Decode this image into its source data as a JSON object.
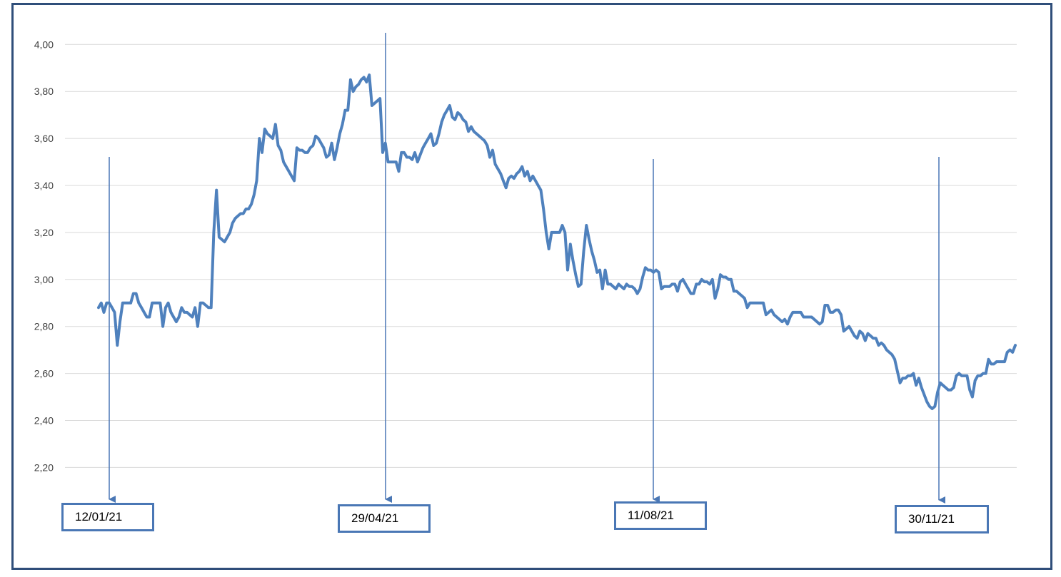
{
  "chart_data": {
    "type": "line",
    "title": "",
    "xlabel": "",
    "ylabel": "",
    "ylim": [
      2.1,
      4.05
    ],
    "y_ticks": [
      "4,00",
      "3,80",
      "3,60",
      "3,40",
      "3,20",
      "3,00",
      "2,80",
      "2,60",
      "2,40",
      "2,20"
    ],
    "y_tick_values": [
      4.0,
      3.8,
      3.6,
      3.4,
      3.2,
      3.0,
      2.8,
      2.6,
      2.4,
      2.2
    ],
    "grid": "horizontal",
    "line_color": "#4F81BD",
    "series": [
      {
        "values": [
          2.88,
          2.9,
          2.86,
          2.9,
          2.9,
          2.88,
          2.86,
          2.72,
          2.82,
          2.9,
          2.9,
          2.9,
          2.9,
          2.94,
          2.94,
          2.9,
          2.88,
          2.86,
          2.84,
          2.84,
          2.9,
          2.9,
          2.9,
          2.9,
          2.8,
          2.88,
          2.9,
          2.86,
          2.84,
          2.82,
          2.84,
          2.88,
          2.86,
          2.86,
          2.85,
          2.84,
          2.88,
          2.8,
          2.9,
          2.9,
          2.89,
          2.88,
          2.88,
          3.2,
          3.38,
          3.18,
          3.17,
          3.16,
          3.18,
          3.2,
          3.24,
          3.26,
          3.27,
          3.28,
          3.28,
          3.3,
          3.3,
          3.32,
          3.36,
          3.42,
          3.6,
          3.54,
          3.64,
          3.62,
          3.61,
          3.6,
          3.66,
          3.57,
          3.55,
          3.5,
          3.48,
          3.46,
          3.44,
          3.42,
          3.56,
          3.55,
          3.55,
          3.54,
          3.54,
          3.56,
          3.57,
          3.61,
          3.6,
          3.58,
          3.56,
          3.52,
          3.53,
          3.58,
          3.51,
          3.56,
          3.62,
          3.66,
          3.72,
          3.72,
          3.85,
          3.8,
          3.82,
          3.83,
          3.85,
          3.86,
          3.84,
          3.87,
          3.74,
          3.75,
          3.76,
          3.77,
          3.54,
          3.58,
          3.5,
          3.5,
          3.5,
          3.5,
          3.46,
          3.54,
          3.54,
          3.52,
          3.52,
          3.51,
          3.54,
          3.5,
          3.53,
          3.56,
          3.58,
          3.6,
          3.62,
          3.57,
          3.58,
          3.62,
          3.67,
          3.7,
          3.72,
          3.74,
          3.69,
          3.68,
          3.71,
          3.7,
          3.68,
          3.67,
          3.63,
          3.65,
          3.63,
          3.62,
          3.61,
          3.6,
          3.59,
          3.57,
          3.52,
          3.55,
          3.49,
          3.47,
          3.45,
          3.42,
          3.39,
          3.43,
          3.44,
          3.43,
          3.45,
          3.46,
          3.48,
          3.44,
          3.46,
          3.42,
          3.44,
          3.42,
          3.4,
          3.38,
          3.3,
          3.2,
          3.13,
          3.2,
          3.2,
          3.2,
          3.2,
          3.23,
          3.2,
          3.04,
          3.15,
          3.08,
          3.02,
          2.97,
          2.98,
          3.12,
          3.23,
          3.17,
          3.12,
          3.08,
          3.03,
          3.04,
          2.96,
          3.04,
          2.98,
          2.98,
          2.97,
          2.96,
          2.98,
          2.97,
          2.96,
          2.98,
          2.97,
          2.97,
          2.96,
          2.94,
          2.96,
          3.01,
          3.05,
          3.04,
          3.04,
          3.03,
          3.04,
          3.03,
          2.96,
          2.97,
          2.97,
          2.97,
          2.98,
          2.98,
          2.95,
          2.99,
          3.0,
          2.98,
          2.96,
          2.94,
          2.94,
          2.98,
          2.98,
          3.0,
          2.99,
          2.99,
          2.98,
          3.0,
          2.92,
          2.96,
          3.02,
          3.01,
          3.01,
          3.0,
          3.0,
          2.95,
          2.95,
          2.94,
          2.93,
          2.92,
          2.88,
          2.9,
          2.9,
          2.9,
          2.9,
          2.9,
          2.9,
          2.85,
          2.86,
          2.87,
          2.85,
          2.84,
          2.83,
          2.82,
          2.83,
          2.81,
          2.84,
          2.86,
          2.86,
          2.86,
          2.86,
          2.84,
          2.84,
          2.84,
          2.84,
          2.83,
          2.82,
          2.81,
          2.82,
          2.89,
          2.89,
          2.86,
          2.86,
          2.87,
          2.87,
          2.85,
          2.78,
          2.79,
          2.8,
          2.78,
          2.76,
          2.75,
          2.78,
          2.77,
          2.74,
          2.77,
          2.76,
          2.75,
          2.75,
          2.72,
          2.73,
          2.72,
          2.7,
          2.69,
          2.68,
          2.66,
          2.61,
          2.56,
          2.58,
          2.58,
          2.59,
          2.59,
          2.6,
          2.55,
          2.58,
          2.54,
          2.51,
          2.48,
          2.46,
          2.45,
          2.46,
          2.52,
          2.56,
          2.55,
          2.54,
          2.53,
          2.53,
          2.54,
          2.59,
          2.6,
          2.59,
          2.59,
          2.59,
          2.53,
          2.5,
          2.57,
          2.59,
          2.59,
          2.6,
          2.6,
          2.66,
          2.64,
          2.64,
          2.65,
          2.65,
          2.65,
          2.65,
          2.69,
          2.7,
          2.69,
          2.72
        ]
      }
    ],
    "annotations": [
      {
        "label": "12/01/21",
        "index": 7
      },
      {
        "label": "29/04/21",
        "index": 103
      },
      {
        "label": "11/08/21",
        "index": 196
      },
      {
        "label": "30/11/21",
        "index": 301
      }
    ]
  }
}
